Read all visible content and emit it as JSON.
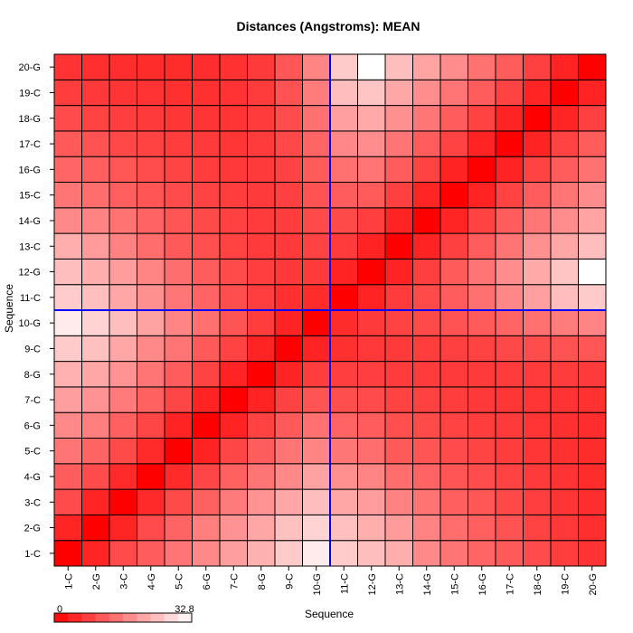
{
  "chart_data": {
    "type": "heatmap",
    "title": "Distances (Angstroms):  MEAN",
    "xlabel": "Sequence",
    "ylabel": "Sequence",
    "x_categories": [
      "1-C",
      "2-G",
      "3-C",
      "4-G",
      "5-C",
      "6-G",
      "7-C",
      "8-G",
      "9-C",
      "10-G",
      "11-C",
      "12-G",
      "13-C",
      "14-G",
      "15-C",
      "16-G",
      "17-C",
      "18-G",
      "19-C",
      "20-G"
    ],
    "y_categories": [
      "1-C",
      "2-G",
      "3-C",
      "4-G",
      "5-C",
      "6-G",
      "7-C",
      "8-G",
      "9-C",
      "10-G",
      "11-C",
      "12-G",
      "13-C",
      "14-G",
      "15-C",
      "16-G",
      "17-C",
      "18-G",
      "19-C",
      "20-G"
    ],
    "value_range": [
      0,
      32.8
    ],
    "colorbar": {
      "min_label": "0",
      "max_label": "32.8",
      "low_color": "#ff0000",
      "high_color": "#ffffff"
    },
    "divider": {
      "after_index": 10,
      "color": "#0000ff"
    },
    "values": [
      [
        0.0,
        4.8,
        9.6,
        12.0,
        15.0,
        17.6,
        20.3,
        22.8,
        26.0,
        30.2,
        26.1,
        24.4,
        22.4,
        17.6,
        15.0,
        13.0,
        11.4,
        9.6,
        7.8,
        6.5
      ],
      [
        4.8,
        0.0,
        4.8,
        9.6,
        12.9,
        16.2,
        18.8,
        21.5,
        24.7,
        27.1,
        24.6,
        22.4,
        20.0,
        16.8,
        14.0,
        12.2,
        10.5,
        8.6,
        7.3,
        6.1
      ],
      [
        9.6,
        4.8,
        0.0,
        5.5,
        9.5,
        12.3,
        15.8,
        18.8,
        21.3,
        24.4,
        21.4,
        20.1,
        16.7,
        14.8,
        12.2,
        11.0,
        9.4,
        8.1,
        6.8,
        5.9
      ],
      [
        12.0,
        9.6,
        5.5,
        0.0,
        5.5,
        9.0,
        12.3,
        15.0,
        17.6,
        20.8,
        18.5,
        17.0,
        14.0,
        12.7,
        10.9,
        9.8,
        8.5,
        7.5,
        6.5,
        5.7
      ],
      [
        15.0,
        12.9,
        9.5,
        5.5,
        0.0,
        4.5,
        9.0,
        12.0,
        14.9,
        17.1,
        15.2,
        14.2,
        11.6,
        10.9,
        9.6,
        8.7,
        7.8,
        7.0,
        6.2,
        5.6
      ],
      [
        17.6,
        16.2,
        12.3,
        9.0,
        4.5,
        0.0,
        4.5,
        8.5,
        11.6,
        14.4,
        12.7,
        12.0,
        10.2,
        9.5,
        8.5,
        7.8,
        7.4,
        6.8,
        6.2,
        5.8
      ],
      [
        20.3,
        18.8,
        15.8,
        12.3,
        9.0,
        4.5,
        0.0,
        4.5,
        8.6,
        10.8,
        10.0,
        9.6,
        8.6,
        8.3,
        7.8,
        7.3,
        7.0,
        6.8,
        6.6,
        6.3
      ],
      [
        22.8,
        21.5,
        18.8,
        15.0,
        12.0,
        8.5,
        4.5,
        0.0,
        4.6,
        7.8,
        8.1,
        8.1,
        7.6,
        7.6,
        7.5,
        7.4,
        7.6,
        7.6,
        7.7,
        7.5
      ],
      [
        26.0,
        24.7,
        21.3,
        17.6,
        14.9,
        11.6,
        8.6,
        4.6,
        0.0,
        4.5,
        6.2,
        7.3,
        7.4,
        7.9,
        8.2,
        8.6,
        9.2,
        9.9,
        10.6,
        11.0
      ],
      [
        30.2,
        27.1,
        24.4,
        20.8,
        17.1,
        14.4,
        10.8,
        7.8,
        4.5,
        0.0,
        5.6,
        7.4,
        8.5,
        9.5,
        10.6,
        11.7,
        13.0,
        14.4,
        15.9,
        17.0
      ],
      [
        26.1,
        24.6,
        21.4,
        18.5,
        15.2,
        12.7,
        10.0,
        8.1,
        6.2,
        5.6,
        0.0,
        4.5,
        7.6,
        9.5,
        12.0,
        14.4,
        17.4,
        20.4,
        24.3,
        26.0
      ],
      [
        24.4,
        22.4,
        20.1,
        17.0,
        14.2,
        12.0,
        9.6,
        8.1,
        7.3,
        7.4,
        4.5,
        0.0,
        4.5,
        8.1,
        11.7,
        15.0,
        18.2,
        21.7,
        25.3,
        32.8
      ],
      [
        22.4,
        20.0,
        16.7,
        14.0,
        11.6,
        10.2,
        8.6,
        7.6,
        7.4,
        8.5,
        7.6,
        4.5,
        0.0,
        4.5,
        8.2,
        12.0,
        15.0,
        18.5,
        21.4,
        24.5
      ],
      [
        17.6,
        16.8,
        14.8,
        12.7,
        10.9,
        9.5,
        8.3,
        7.6,
        7.9,
        9.5,
        9.5,
        8.1,
        4.5,
        0.0,
        4.7,
        8.6,
        12.0,
        15.2,
        18.2,
        21.0
      ],
      [
        15.0,
        14.0,
        12.2,
        10.9,
        9.6,
        8.5,
        7.8,
        7.5,
        8.2,
        10.6,
        12.0,
        11.7,
        8.2,
        4.7,
        0.0,
        4.5,
        8.6,
        12.0,
        15.0,
        18.0
      ],
      [
        13.0,
        12.2,
        11.0,
        9.8,
        8.7,
        7.8,
        7.3,
        7.4,
        8.6,
        11.7,
        14.4,
        15.0,
        12.0,
        8.6,
        4.5,
        0.0,
        4.5,
        8.6,
        12.0,
        14.6
      ],
      [
        11.4,
        10.5,
        9.4,
        8.5,
        7.8,
        7.4,
        7.0,
        7.6,
        9.2,
        13.0,
        17.4,
        18.2,
        15.0,
        12.0,
        8.6,
        4.5,
        0.0,
        4.6,
        8.6,
        11.8
      ],
      [
        9.6,
        8.6,
        8.1,
        7.5,
        7.0,
        6.8,
        6.8,
        7.6,
        9.9,
        14.4,
        20.4,
        21.7,
        18.5,
        15.2,
        12.0,
        8.6,
        4.6,
        0.0,
        4.8,
        8.2
      ],
      [
        7.8,
        7.3,
        6.8,
        6.5,
        6.2,
        6.2,
        6.6,
        7.7,
        10.6,
        15.9,
        24.3,
        25.3,
        21.4,
        18.2,
        15.0,
        12.0,
        8.6,
        4.8,
        0.0,
        4.5
      ],
      [
        6.5,
        6.1,
        5.9,
        5.7,
        5.6,
        5.8,
        6.3,
        7.5,
        11.0,
        17.0,
        26.0,
        32.8,
        24.5,
        21.0,
        18.0,
        14.6,
        11.8,
        8.2,
        4.5,
        0.0
      ]
    ]
  }
}
